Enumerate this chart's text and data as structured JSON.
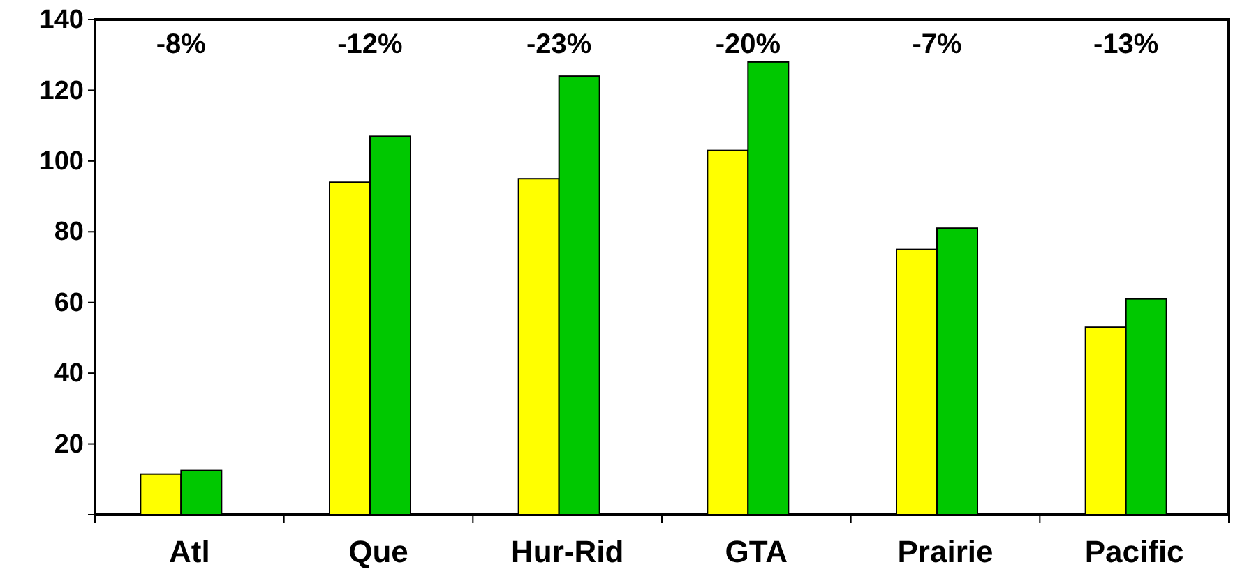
{
  "chart_data": {
    "type": "bar",
    "categories": [
      "Atl",
      "Que",
      "Hur-Rid",
      "GTA",
      "Prairie",
      "Pacific"
    ],
    "series": [
      {
        "color": "#ffff00",
        "values": [
          11.5,
          94,
          95,
          103,
          75,
          53
        ]
      },
      {
        "color": "#00c800",
        "values": [
          12.5,
          107,
          124,
          128,
          81,
          61
        ]
      }
    ],
    "ylim": [
      0,
      140
    ],
    "yticks": [
      {
        "value": 0,
        "label": null
      },
      20,
      40,
      60,
      80,
      100,
      120,
      140
    ],
    "annotations": [
      "-8%",
      "-12%",
      "-23%",
      "-20%",
      "-7%",
      "-13%"
    ]
  }
}
